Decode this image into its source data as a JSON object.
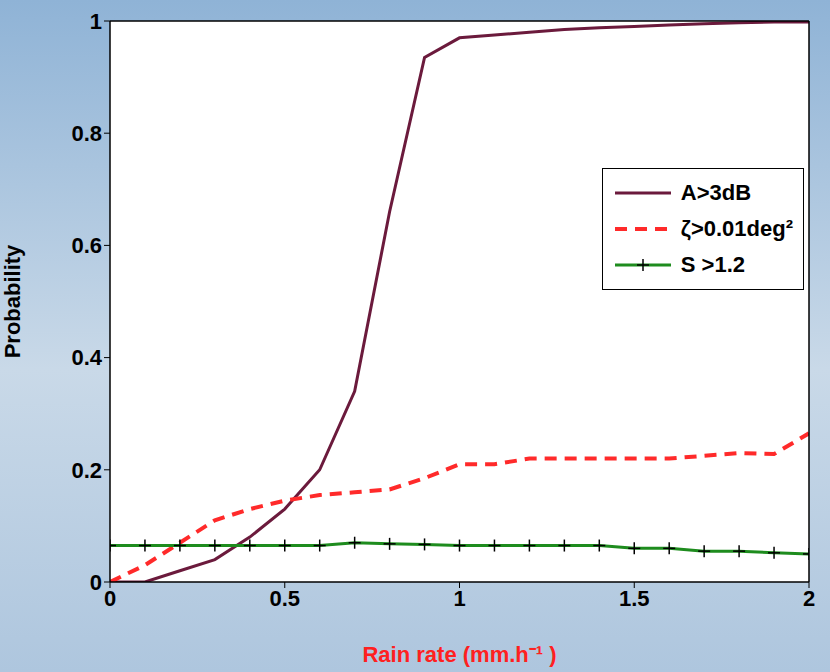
{
  "chart_data": {
    "type": "line",
    "x_label": "Rain rate (mm.h⁻¹ )",
    "y_label": "Probability",
    "x": [
      0,
      0.1,
      0.2,
      0.3,
      0.4,
      0.5,
      0.6,
      0.7,
      0.8,
      0.9,
      1.0,
      1.1,
      1.2,
      1.3,
      1.4,
      1.5,
      1.6,
      1.7,
      1.8,
      1.9,
      2.0
    ],
    "xlim": [
      0,
      2
    ],
    "xticks": [
      0,
      0.5,
      1,
      1.5,
      2
    ],
    "ylim": [
      0,
      1
    ],
    "yticks": [
      0,
      0.2,
      0.4,
      0.6,
      0.8,
      1
    ],
    "grid": false,
    "legend": "right",
    "series": [
      {
        "name": "A>3dB",
        "color": "#6b1a3c",
        "line_style": "solid",
        "values": [
          0,
          0.0,
          0.02,
          0.04,
          0.08,
          0.13,
          0.2,
          0.34,
          0.66,
          0.935,
          0.97,
          0.975,
          0.98,
          0.985,
          0.988,
          0.99,
          0.993,
          0.995,
          0.997,
          0.998,
          0.998
        ]
      },
      {
        "name": "ζ>0.01deg²",
        "color": "#ff2a2a",
        "line_style": "dashed",
        "values": [
          0,
          0.03,
          0.07,
          0.11,
          0.13,
          0.145,
          0.155,
          0.16,
          0.165,
          0.185,
          0.21,
          0.21,
          0.22,
          0.22,
          0.22,
          0.22,
          0.22,
          0.225,
          0.23,
          0.228,
          0.265
        ]
      },
      {
        "name": "S >1.2",
        "color": "#1e8c1e",
        "line_style": "solid",
        "marker": "plus",
        "values": [
          0.065,
          0.065,
          0.065,
          0.065,
          0.065,
          0.065,
          0.065,
          0.07,
          0.068,
          0.067,
          0.065,
          0.065,
          0.065,
          0.065,
          0.065,
          0.06,
          0.06,
          0.055,
          0.055,
          0.052,
          0.05
        ]
      }
    ]
  }
}
